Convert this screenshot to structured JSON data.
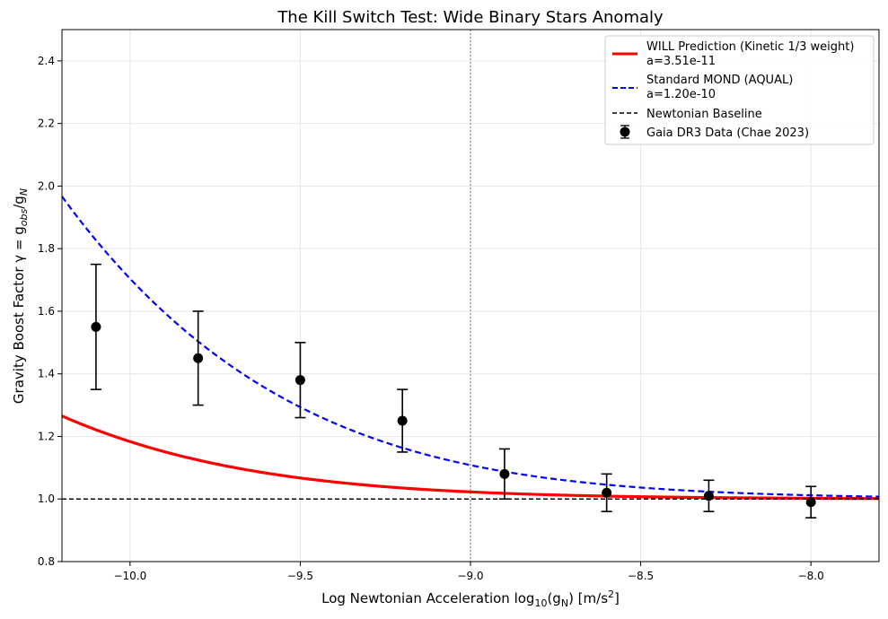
{
  "chart_data": {
    "type": "line",
    "title": "The Kill Switch Test: Wide Binary Stars Anomaly",
    "xlabel": {
      "prefix": "Log Newtonian Acceleration log",
      "sub": "10",
      "mid": "(g",
      "sub2": "N",
      "mid2": ") [m/s",
      "sup": "2",
      "suffix": "]"
    },
    "ylabel": {
      "prefix": "Gravity Boost Factor γ = g",
      "sub1": "obs",
      "mid": "/g",
      "sub2": "N"
    },
    "xlim": [
      -10.2,
      -7.8
    ],
    "ylim": [
      0.8,
      2.5
    ],
    "xticks": [
      -10.0,
      -9.5,
      -9.0,
      -8.5,
      -8.0
    ],
    "xtick_labels": [
      "−10.0",
      "−9.5",
      "−9.0",
      "−8.5",
      "−8.0"
    ],
    "yticks": [
      0.8,
      1.0,
      1.2,
      1.4,
      1.6,
      1.8,
      2.0,
      2.2,
      2.4
    ],
    "ytick_labels": [
      "0.8",
      "1.0",
      "1.2",
      "1.4",
      "1.6",
      "1.8",
      "2.0",
      "2.2",
      "2.4"
    ],
    "grid": true,
    "vline_x": -9.0,
    "series": [
      {
        "name": "WILL Prediction (Kinetic 1/3 weight)",
        "name_line2": "a=3.51e-11",
        "style": "solid",
        "color": "#ff0000",
        "model": "will",
        "a0": 3.51e-11
      },
      {
        "name": "Standard MOND (AQUAL)",
        "name_line2": "a=1.20e-10",
        "style": "dashed",
        "color": "#0000ff",
        "model": "mond",
        "a0": 1.2e-10
      },
      {
        "name": "Newtonian Baseline",
        "style": "dashed",
        "color": "#000000",
        "model": "flat",
        "value": 1.0
      }
    ],
    "data_points": {
      "name": "Gaia DR3 Data (Chae 2023)",
      "x": [
        -10.1,
        -9.8,
        -9.5,
        -9.2,
        -8.9,
        -8.6,
        -8.3,
        -8.0
      ],
      "y": [
        1.55,
        1.45,
        1.38,
        1.25,
        1.08,
        1.02,
        1.01,
        0.99
      ],
      "err_low": [
        0.2,
        0.15,
        0.12,
        0.1,
        0.08,
        0.06,
        0.05,
        0.05
      ],
      "err_high": [
        0.2,
        0.15,
        0.12,
        0.1,
        0.08,
        0.06,
        0.05,
        0.05
      ]
    },
    "legend_position": "top-right"
  },
  "colors": {
    "will": "#ff0000",
    "mond": "#0000ff",
    "newton": "#000000",
    "vline": "#a0a0a0",
    "grid": "#e6e6e6"
  }
}
